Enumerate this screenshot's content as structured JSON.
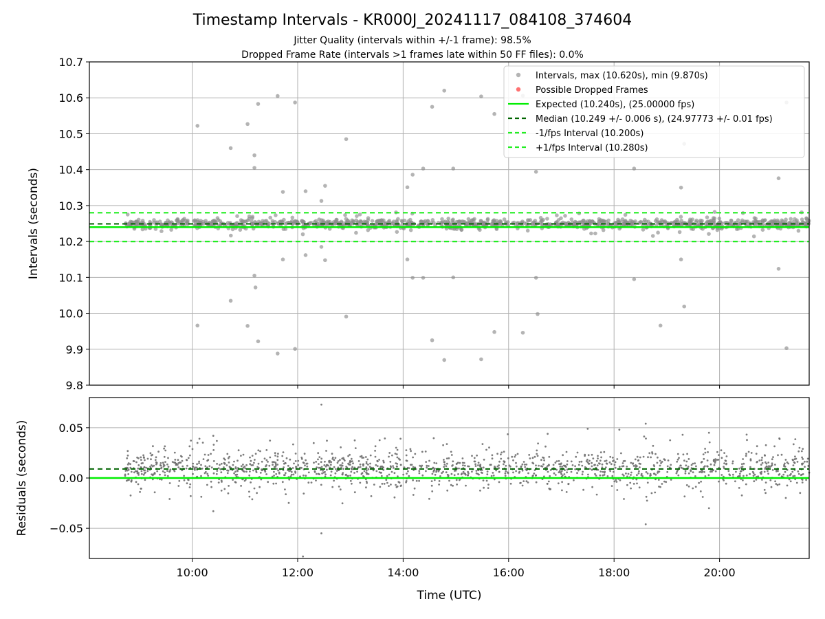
{
  "title": "Timestamp Intervals - KR000J_20241117_084108_374604",
  "subtitle_1": "Jitter Quality (intervals within +/-1 frame): 98.5%",
  "subtitle_2": "Dropped Frame Rate (intervals >1 frames late within 50 FF files): 0.0%",
  "colors": {
    "intervals": "#8c8c8c",
    "dropped": "#ff4d4d",
    "expected": "#00ee00",
    "median": "#006400",
    "fps_interval": "#22ee22",
    "residuals": "#6e6e6e"
  },
  "chart_data": [
    {
      "type": "scatter",
      "name": "intervals",
      "ylabel": "Intervals (seconds)",
      "xlabel": "",
      "xlim_hours": [
        8.05,
        21.7
      ],
      "ylim": [
        9.8,
        10.7
      ],
      "yticks": [
        9.8,
        9.9,
        10.0,
        10.1,
        10.2,
        10.3,
        10.4,
        10.5,
        10.6,
        10.7
      ],
      "ytick_labels": [
        "9.8",
        "9.9",
        "10.0",
        "10.1",
        "10.2",
        "10.3",
        "10.4",
        "10.5",
        "10.6",
        "10.7"
      ],
      "grid": true,
      "legend_position": "upper-right",
      "legend": [
        {
          "label": "Intervals, max (10.620s), min (9.870s)",
          "kind": "point",
          "color": "#8c8c8c"
        },
        {
          "label": "Possible Dropped Frames",
          "kind": "point",
          "color": "#ff4d4d"
        },
        {
          "label": "Expected (10.240s), (25.00000 fps)",
          "kind": "line",
          "color": "#00ee00"
        },
        {
          "label": "Median (10.249 +/- 0.006 s), (24.97773 +/- 0.01 fps)",
          "kind": "dashed",
          "color": "#006400"
        },
        {
          "label": "-1/fps Interval (10.200s)",
          "kind": "dashed",
          "color": "#22ee22"
        },
        {
          "label": "+1/fps Interval (10.280s)",
          "kind": "dashed",
          "color": "#22ee22"
        }
      ],
      "hlines": [
        {
          "name": "expected",
          "y": 10.24,
          "style": "solid"
        },
        {
          "name": "median",
          "y": 10.249,
          "style": "dashed"
        },
        {
          "name": "minus-fps",
          "y": 10.2,
          "style": "dashed"
        },
        {
          "name": "plus-fps",
          "y": 10.28,
          "style": "dashed"
        }
      ],
      "dense_band": {
        "x_range": [
          8.72,
          21.7
        ],
        "center": 10.249,
        "spread": 0.012
      },
      "outliers": [
        [
          10.1,
          10.522
        ],
        [
          10.1,
          9.966
        ],
        [
          10.73,
          10.46
        ],
        [
          10.73,
          10.035
        ],
        [
          11.05,
          10.527
        ],
        [
          11.05,
          9.965
        ],
        [
          11.18,
          10.44
        ],
        [
          11.18,
          10.405
        ],
        [
          11.18,
          10.105
        ],
        [
          11.2,
          10.072
        ],
        [
          11.25,
          10.583
        ],
        [
          11.25,
          9.922
        ],
        [
          11.62,
          10.605
        ],
        [
          11.62,
          9.888
        ],
        [
          11.72,
          10.338
        ],
        [
          11.72,
          10.15
        ],
        [
          11.95,
          10.587
        ],
        [
          11.95,
          9.901
        ],
        [
          12.15,
          10.34
        ],
        [
          12.15,
          10.162
        ],
        [
          12.45,
          10.313
        ],
        [
          12.45,
          10.185
        ],
        [
          12.52,
          10.355
        ],
        [
          12.52,
          10.148
        ],
        [
          12.92,
          10.485
        ],
        [
          12.92,
          9.991
        ],
        [
          14.08,
          10.351
        ],
        [
          14.08,
          10.15
        ],
        [
          14.18,
          10.386
        ],
        [
          14.18,
          10.099
        ],
        [
          14.38,
          10.403
        ],
        [
          14.38,
          10.099
        ],
        [
          14.55,
          10.575
        ],
        [
          14.55,
          9.925
        ],
        [
          14.78,
          10.62
        ],
        [
          14.78,
          9.87
        ],
        [
          14.95,
          10.403
        ],
        [
          14.95,
          10.1
        ],
        [
          15.48,
          10.604
        ],
        [
          15.48,
          9.872
        ],
        [
          15.73,
          10.555
        ],
        [
          15.73,
          9.948
        ],
        [
          16.27,
          10.606
        ],
        [
          16.27,
          9.946
        ],
        [
          16.52,
          10.394
        ],
        [
          16.52,
          10.099
        ],
        [
          16.55,
          10.58
        ],
        [
          16.55,
          9.998
        ],
        [
          18.38,
          10.403
        ],
        [
          18.38,
          10.095
        ],
        [
          18.88,
          10.531
        ],
        [
          18.88,
          9.966
        ],
        [
          19.27,
          10.35
        ],
        [
          19.27,
          10.15
        ],
        [
          19.33,
          10.472
        ],
        [
          19.33,
          10.019
        ],
        [
          21.12,
          10.376
        ],
        [
          21.12,
          10.124
        ],
        [
          21.27,
          10.587
        ],
        [
          21.27,
          9.903
        ]
      ]
    },
    {
      "type": "scatter",
      "name": "residuals",
      "ylabel": "Residuals (seconds)",
      "xlabel": "Time (UTC)",
      "xlim_hours": [
        8.05,
        21.7
      ],
      "ylim": [
        -0.08,
        0.08
      ],
      "yticks": [
        -0.05,
        0.0,
        0.05
      ],
      "ytick_labels": [
        "−0.05",
        "0.00",
        "0.05"
      ],
      "xticks_hours": [
        10,
        12,
        14,
        16,
        18,
        20
      ],
      "xtick_labels": [
        "10:00",
        "12:00",
        "14:00",
        "16:00",
        "18:00",
        "20:00"
      ],
      "grid": true,
      "hlines": [
        {
          "name": "zero",
          "y": 0.0,
          "style": "solid"
        },
        {
          "name": "median-offset",
          "y": 0.009,
          "style": "dashed"
        }
      ],
      "dense_band": {
        "x_range": [
          8.72,
          21.7
        ],
        "center": 0.009,
        "spread": 0.012
      },
      "outliers": [
        [
          12.45,
          0.073
        ],
        [
          12.45,
          -0.055
        ],
        [
          12.1,
          -0.078
        ],
        [
          18.6,
          0.054
        ],
        [
          18.6,
          -0.046
        ],
        [
          17.5,
          0.049
        ],
        [
          18.1,
          0.048
        ],
        [
          10.4,
          0.042
        ],
        [
          10.4,
          -0.033
        ],
        [
          19.3,
          0.043
        ],
        [
          19.8,
          0.045
        ],
        [
          19.8,
          -0.03
        ]
      ]
    }
  ]
}
